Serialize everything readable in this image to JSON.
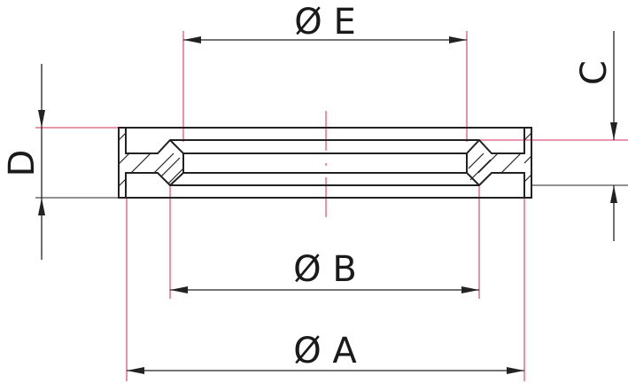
{
  "dimensions": {
    "E": "Ø E",
    "B": "Ø B",
    "A": "Ø A",
    "D": "D",
    "C": "C"
  },
  "colors": {
    "outline": "#222222",
    "reference_lines": "#e0577a"
  }
}
